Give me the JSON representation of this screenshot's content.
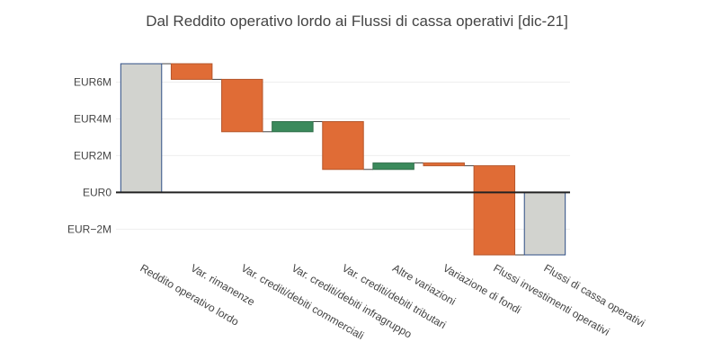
{
  "chart_data": {
    "type": "waterfall",
    "title": "Dal Reddito operativo lordo ai Flussi di cassa operativi [dic-21]",
    "xlabel": "",
    "ylabel": "",
    "ylim": [
      -3.4,
      7.0
    ],
    "y_ticks": [
      {
        "value": -2,
        "label": "EUR−2M"
      },
      {
        "value": 0,
        "label": "EUR0"
      },
      {
        "value": 2,
        "label": "EUR2M"
      },
      {
        "value": 4,
        "label": "EUR4M"
      },
      {
        "value": 6,
        "label": "EUR6M"
      }
    ],
    "grid": true,
    "legend": "none",
    "categories": [
      "Reddito operativo lordo",
      "Var. rimanenze",
      "Var. crediti/debiti commerciali",
      "Var. crediti/debiti infragruppo",
      "Var. crediti/debiti tributari",
      "Altre variazioni",
      "Variazione di fondi",
      "Flussi investimenti operativi",
      "Flussi di cassa operativi"
    ],
    "measures": [
      "absolute",
      "relative",
      "relative",
      "relative",
      "relative",
      "relative",
      "relative",
      "relative",
      "total"
    ],
    "values": [
      7.0,
      -0.85,
      -2.85,
      0.55,
      -2.6,
      0.35,
      -0.15,
      -4.85,
      -3.4
    ],
    "colors": {
      "total_fill": "#d2d3cf",
      "total_line": "#2f4e86",
      "decrease_fill": "#e06c36",
      "decrease_line": "#b5562b",
      "increase_fill": "#3b8a5c",
      "increase_line": "#2e6d48",
      "connector": "#444444",
      "zero_line": "#222222",
      "grid": "#eeeeee",
      "text": "#444444"
    }
  }
}
